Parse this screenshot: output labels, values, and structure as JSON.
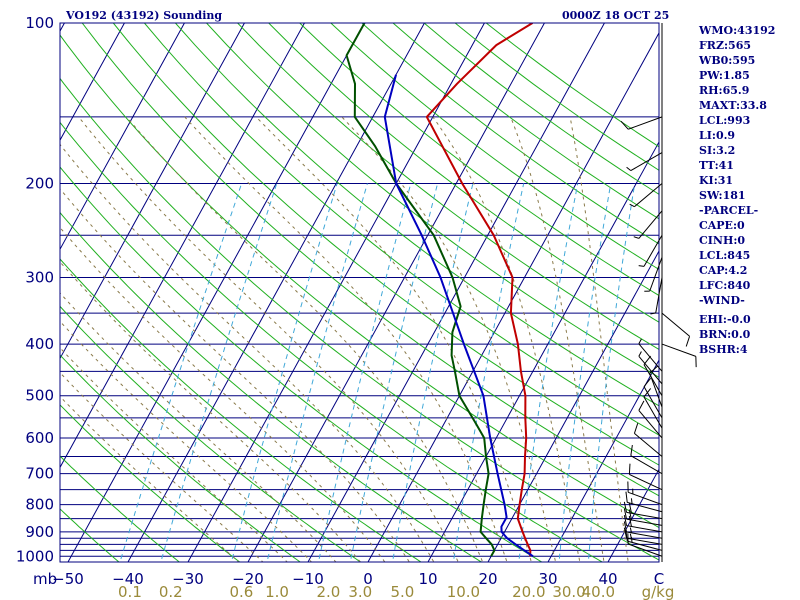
{
  "header": {
    "station": "VO192 (43192) Sounding",
    "time": "0000Z 18 OCT 25"
  },
  "stats": [
    "WMO:43192",
    "FRZ:565",
    "WB0:595",
    "PW:1.85",
    "RH:65.9",
    "MAXT:33.8",
    "LCL:993",
    "LI:0.9",
    "SI:3.2",
    "TT:41",
    "KI:31",
    "SW:181",
    "-PARCEL-",
    "CAPE:0",
    "CINH:0",
    "LCL:845",
    "CAP:4.2",
    "LFC:840",
    "-WIND-"
  ],
  "stats2": [
    "EHI:-0.0",
    "BRN:0.0",
    "BSHR:4"
  ],
  "colors": {
    "frame": "#00007f",
    "isobar": "#00007f",
    "isotherm": "#00007f",
    "dry_adiabat": "#20b020",
    "moist_adiabat": "#8a7a4a",
    "mixing_ratio": "#40a8d8",
    "temperature": "#c00000",
    "dewpoint": "#005000",
    "parcel": "#0000c0",
    "mixing_label": "#9a8a3a",
    "wind": "#000000"
  },
  "chart_data": {
    "type": "skew-t",
    "y_axis_unit": "mb",
    "x_axis_right_label": "C",
    "mixing_unit": "g/kg",
    "pressure_labels": [
      100,
      200,
      300,
      400,
      500,
      600,
      700,
      800,
      900,
      1000
    ],
    "isobars": [
      100,
      150,
      200,
      250,
      300,
      350,
      400,
      450,
      500,
      550,
      600,
      650,
      700,
      750,
      800,
      850,
      900,
      925,
      950,
      975,
      1000
    ],
    "temperature_ticks": [
      -50,
      -40,
      -30,
      -20,
      -10,
      0,
      10,
      20,
      30,
      40
    ],
    "xlim": [
      -50,
      50
    ],
    "ylim": [
      1025,
      100
    ],
    "mixing_labels": [
      "0.1",
      "0.2",
      "0.6",
      "1.0",
      "2.0",
      "3.0",
      "5.0",
      "10.0",
      "20.0",
      "30.0",
      "40.0"
    ],
    "series": [
      {
        "name": "",
        "kind": "temperature",
        "points": [
          [
            1000,
            26.5
          ],
          [
            975,
            26
          ],
          [
            950,
            25
          ],
          [
            925,
            24
          ],
          [
            900,
            23
          ],
          [
            850,
            21
          ],
          [
            800,
            20
          ],
          [
            750,
            19
          ],
          [
            700,
            18
          ],
          [
            650,
            16.5
          ],
          [
            600,
            15
          ],
          [
            550,
            13
          ],
          [
            500,
            11
          ],
          [
            450,
            8
          ],
          [
            400,
            5
          ],
          [
            350,
            1
          ],
          [
            300,
            -2
          ],
          [
            250,
            -9
          ],
          [
            200,
            -19
          ],
          [
            150,
            -31
          ],
          [
            130,
            -29
          ],
          [
            110,
            -26
          ],
          [
            100,
            -22
          ]
        ]
      },
      {
        "name": "",
        "kind": "dewpoint",
        "points": [
          [
            1000,
            20
          ],
          [
            975,
            20
          ],
          [
            950,
            19
          ],
          [
            925,
            17.5
          ],
          [
            900,
            16
          ],
          [
            850,
            15
          ],
          [
            800,
            14
          ],
          [
            750,
            13
          ],
          [
            700,
            12
          ],
          [
            650,
            10
          ],
          [
            600,
            8
          ],
          [
            560,
            5
          ],
          [
            500,
            0
          ],
          [
            450,
            -3
          ],
          [
            420,
            -5
          ],
          [
            380,
            -7
          ],
          [
            340,
            -8
          ],
          [
            300,
            -12
          ],
          [
            250,
            -19
          ],
          [
            200,
            -30
          ],
          [
            170,
            -37
          ],
          [
            150,
            -43
          ],
          [
            130,
            -46
          ],
          [
            115,
            -50
          ],
          [
            100,
            -50
          ]
        ]
      },
      {
        "name": "",
        "kind": "parcel",
        "points": [
          [
            1000,
            27
          ],
          [
            975,
            25
          ],
          [
            950,
            23
          ],
          [
            925,
            21
          ],
          [
            900,
            19.5
          ],
          [
            880,
            19
          ],
          [
            845,
            19
          ],
          [
            800,
            17.5
          ],
          [
            700,
            13.5
          ],
          [
            600,
            9
          ],
          [
            500,
            4
          ],
          [
            400,
            -4
          ],
          [
            300,
            -14
          ],
          [
            250,
            -21
          ],
          [
            200,
            -30
          ],
          [
            150,
            -38
          ],
          [
            125,
            -40
          ]
        ]
      }
    ],
    "winds": [
      {
        "p": 1000,
        "dir": 290,
        "spd": 10
      },
      {
        "p": 975,
        "dir": 285,
        "spd": 15
      },
      {
        "p": 950,
        "dir": 280,
        "spd": 15
      },
      {
        "p": 925,
        "dir": 280,
        "spd": 15
      },
      {
        "p": 900,
        "dir": 280,
        "spd": 20
      },
      {
        "p": 875,
        "dir": 280,
        "spd": 20
      },
      {
        "p": 850,
        "dir": 280,
        "spd": 20
      },
      {
        "p": 825,
        "dir": 285,
        "spd": 15
      },
      {
        "p": 800,
        "dir": 290,
        "spd": 15
      },
      {
        "p": 750,
        "dir": 295,
        "spd": 10
      },
      {
        "p": 700,
        "dir": 300,
        "spd": 10
      },
      {
        "p": 650,
        "dir": 310,
        "spd": 10
      },
      {
        "p": 600,
        "dir": 320,
        "spd": 10
      },
      {
        "p": 575,
        "dir": 330,
        "spd": 10
      },
      {
        "p": 550,
        "dir": 330,
        "spd": 10
      },
      {
        "p": 525,
        "dir": 340,
        "spd": 10
      },
      {
        "p": 500,
        "dir": 330,
        "spd": 10
      },
      {
        "p": 475,
        "dir": 320,
        "spd": 5
      },
      {
        "p": 450,
        "dir": 320,
        "spd": 5
      },
      {
        "p": 400,
        "dir": 110,
        "spd": 10
      },
      {
        "p": 350,
        "dir": 130,
        "spd": 10
      },
      {
        "p": 300,
        "dir": 190,
        "spd": 5
      },
      {
        "p": 275,
        "dir": 200,
        "spd": 5
      },
      {
        "p": 250,
        "dir": 210,
        "spd": 5
      },
      {
        "p": 225,
        "dir": 220,
        "spd": 5
      },
      {
        "p": 200,
        "dir": 230,
        "spd": 5
      },
      {
        "p": 175,
        "dir": 240,
        "spd": 5
      },
      {
        "p": 150,
        "dir": 250,
        "spd": 10
      }
    ]
  }
}
